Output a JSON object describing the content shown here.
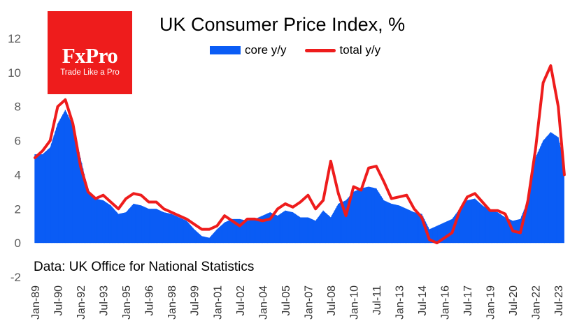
{
  "chart_data": {
    "type": "area",
    "title": "UK Consumer Price Index, %",
    "xlabel": "",
    "ylabel": "",
    "ylim": [
      -2,
      12
    ],
    "yticks": [
      -2,
      0,
      2,
      4,
      6,
      8,
      10,
      12
    ],
    "xlim": [
      "Jan-89",
      "Dec-23"
    ],
    "xtick_labels": [
      "Jan-89",
      "Jul-90",
      "Jan-92",
      "Jul-93",
      "Jan-95",
      "Jul-96",
      "Jan-98",
      "Jul-99",
      "Jan-01",
      "Jul-02",
      "Jan-04",
      "Jul-05",
      "Jan-07",
      "Jul-08",
      "Jan-10",
      "Jul-11",
      "Jan-13",
      "Jul-14",
      "Jan-16",
      "Jul-17",
      "Jan-19",
      "Jul-20",
      "Jan-22",
      "Jul-23"
    ],
    "grid": false,
    "legend_position": "top",
    "series": [
      {
        "name": "core y/y",
        "style": "bar",
        "color": "#0a5cf5",
        "x": [
          1989.0,
          1989.5,
          1990.0,
          1990.5,
          1991.0,
          1991.5,
          1992.0,
          1992.5,
          1993.0,
          1993.5,
          1994.0,
          1994.5,
          1995.0,
          1995.5,
          1996.0,
          1996.5,
          1997.0,
          1997.5,
          1998.0,
          1998.5,
          1999.0,
          1999.5,
          2000.0,
          2000.5,
          2001.0,
          2001.5,
          2002.0,
          2002.5,
          2003.0,
          2003.5,
          2004.0,
          2004.5,
          2005.0,
          2005.5,
          2006.0,
          2006.5,
          2007.0,
          2007.5,
          2008.0,
          2008.5,
          2009.0,
          2009.5,
          2010.0,
          2010.5,
          2011.0,
          2011.5,
          2012.0,
          2012.5,
          2013.0,
          2013.5,
          2014.0,
          2014.5,
          2015.0,
          2015.5,
          2016.0,
          2016.5,
          2017.0,
          2017.5,
          2018.0,
          2018.5,
          2019.0,
          2019.5,
          2020.0,
          2020.5,
          2021.0,
          2021.5,
          2022.0,
          2022.5,
          2023.0,
          2023.5,
          2023.9
        ],
        "values": [
          5.2,
          5.2,
          5.6,
          7.0,
          7.8,
          6.9,
          5.0,
          3.1,
          2.6,
          2.5,
          2.2,
          1.7,
          1.8,
          2.3,
          2.2,
          2.0,
          2.0,
          1.8,
          1.7,
          1.5,
          1.3,
          0.8,
          0.4,
          0.3,
          0.8,
          1.2,
          1.4,
          1.4,
          1.3,
          1.4,
          1.6,
          1.8,
          1.6,
          1.9,
          1.8,
          1.5,
          1.5,
          1.3,
          1.9,
          1.5,
          2.3,
          2.5,
          3.0,
          3.2,
          3.3,
          3.2,
          2.5,
          2.3,
          2.2,
          2.0,
          1.8,
          1.7,
          0.8,
          1.0,
          1.2,
          1.4,
          2.0,
          2.5,
          2.6,
          2.2,
          1.9,
          1.8,
          1.5,
          1.3,
          1.4,
          2.5,
          5.0,
          6.0,
          6.5,
          6.2,
          4.6
        ]
      },
      {
        "name": "total y/y",
        "style": "line",
        "color": "#ee1c1c",
        "x": [
          1989.0,
          1989.5,
          1990.0,
          1990.5,
          1991.0,
          1991.5,
          1992.0,
          1992.5,
          1993.0,
          1993.5,
          1994.0,
          1994.5,
          1995.0,
          1995.5,
          1996.0,
          1996.5,
          1997.0,
          1997.5,
          1998.0,
          1998.5,
          1999.0,
          1999.5,
          2000.0,
          2000.5,
          2001.0,
          2001.5,
          2002.0,
          2002.5,
          2003.0,
          2003.5,
          2004.0,
          2004.5,
          2005.0,
          2005.5,
          2006.0,
          2006.5,
          2007.0,
          2007.5,
          2008.0,
          2008.5,
          2009.0,
          2009.5,
          2010.0,
          2010.5,
          2011.0,
          2011.5,
          2012.0,
          2012.5,
          2013.0,
          2013.5,
          2014.0,
          2014.5,
          2015.0,
          2015.5,
          2016.0,
          2016.5,
          2017.0,
          2017.5,
          2018.0,
          2018.5,
          2019.0,
          2019.5,
          2020.0,
          2020.5,
          2021.0,
          2021.5,
          2022.0,
          2022.5,
          2023.0,
          2023.5,
          2023.9
        ],
        "values": [
          5.0,
          5.4,
          6.0,
          8.0,
          8.4,
          7.0,
          4.5,
          3.0,
          2.6,
          2.8,
          2.4,
          2.0,
          2.6,
          2.9,
          2.8,
          2.4,
          2.4,
          2.0,
          1.8,
          1.6,
          1.4,
          1.1,
          0.8,
          0.8,
          1.0,
          1.6,
          1.3,
          1.0,
          1.4,
          1.4,
          1.3,
          1.4,
          2.0,
          2.3,
          2.1,
          2.4,
          2.8,
          2.0,
          2.5,
          4.8,
          2.9,
          1.6,
          3.3,
          3.1,
          4.4,
          4.5,
          3.6,
          2.6,
          2.7,
          2.8,
          2.0,
          1.5,
          0.2,
          0.0,
          0.3,
          0.6,
          1.9,
          2.7,
          2.9,
          2.4,
          1.9,
          1.9,
          1.7,
          0.7,
          0.6,
          2.5,
          5.5,
          9.4,
          10.4,
          8.0,
          4.0
        ]
      }
    ],
    "annotations": [
      "Data: UK Office for National Statistics"
    ]
  },
  "logo": {
    "brand_text": "FxPro",
    "tagline": "Trade Like a Pro",
    "color": "#ee1c1c"
  }
}
